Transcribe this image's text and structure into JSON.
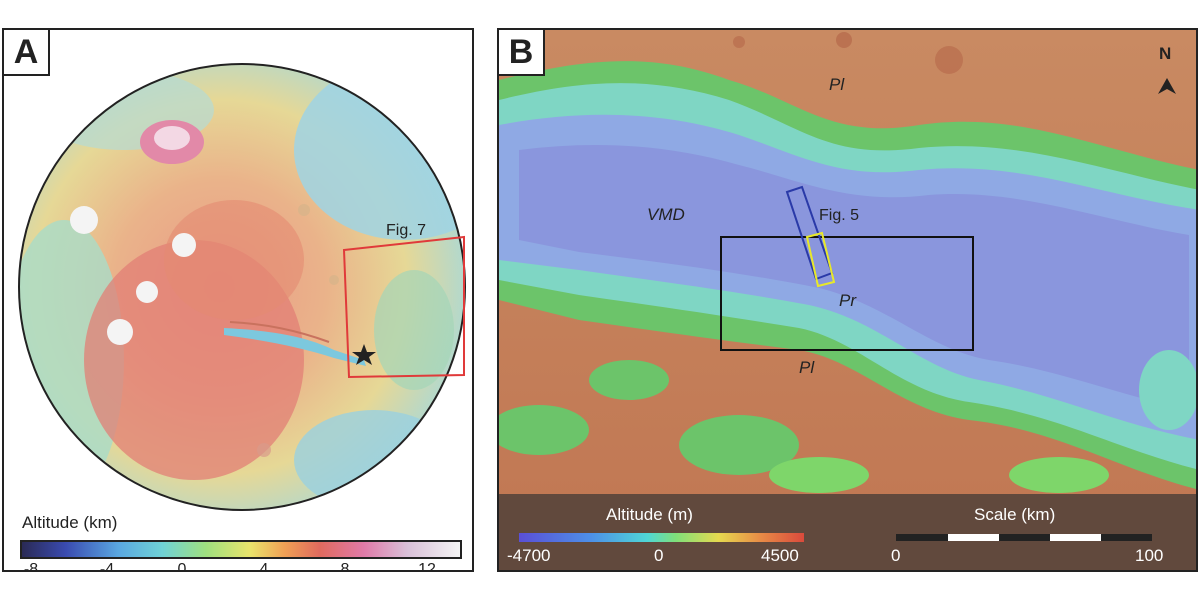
{
  "panel_a": {
    "letter": "A",
    "inset_label": "Fig. 7",
    "legend": {
      "title": "Altitude (km)",
      "ticks": [
        "-8",
        "-4",
        "0",
        "4",
        "8",
        "12"
      ]
    }
  },
  "panel_b": {
    "letter": "B",
    "north_label": "N",
    "labels": {
      "pl_top": "Pl",
      "vmd": "VMD",
      "fig5": "Fig. 5",
      "pr": "Pr",
      "pl_bottom": "Pl"
    },
    "altitude_legend": {
      "title": "Altitude (m)",
      "min": "-4700",
      "mid": "0",
      "max": "4500"
    },
    "scale_legend": {
      "title": "Scale (km)",
      "min": "0",
      "max": "100"
    }
  },
  "colors": {
    "inset_box_red": "#e03a3a",
    "box_blue": "#2a3aa8",
    "box_yellow": "#e8e82a",
    "box_black": "#111111"
  }
}
